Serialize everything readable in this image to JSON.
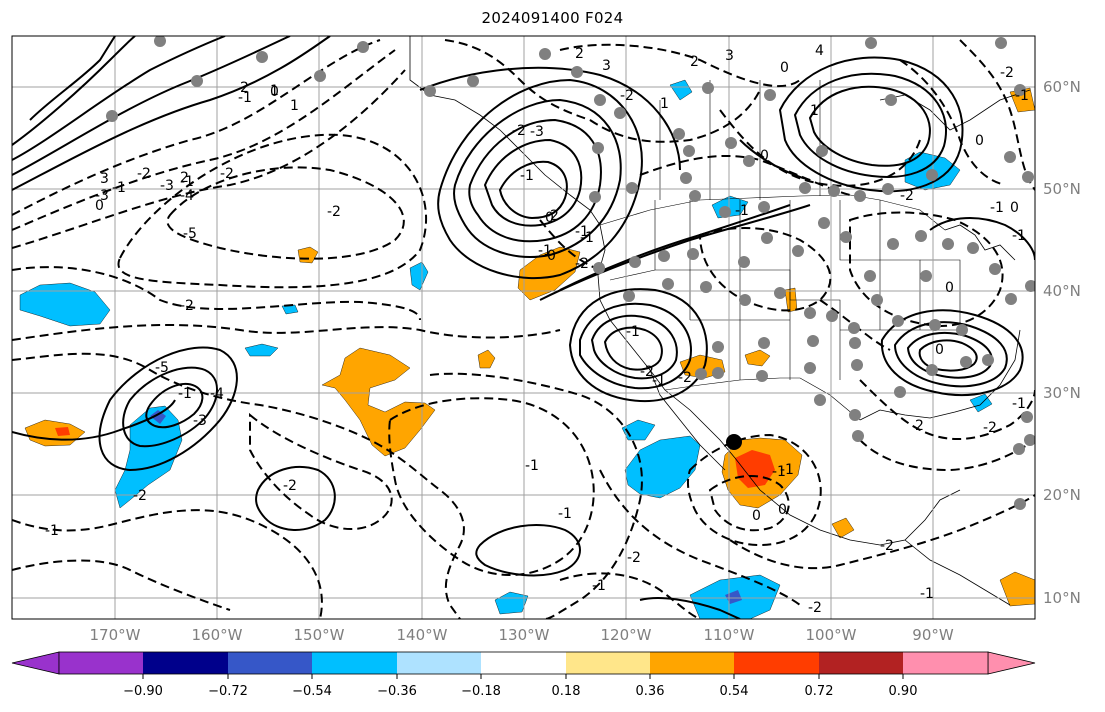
{
  "title": "2024091400 F024",
  "map": {
    "lon_labels": [
      "170°W",
      "160°W",
      "150°W",
      "140°W",
      "130°W",
      "120°W",
      "110°W",
      "100°W",
      "90°W"
    ],
    "lat_labels": [
      "60°N",
      "50°N",
      "40°N",
      "30°N",
      "20°N",
      "10°N"
    ],
    "contour_labels": [
      "-1",
      "-2",
      "-3",
      "-4",
      "-5",
      "-1",
      "0",
      "1",
      "2",
      "-2",
      "-1",
      "0",
      "-2",
      "-3",
      "-2",
      "-1",
      "-5",
      "-4",
      "-3",
      "-2",
      "-1",
      "-2",
      "-1",
      "-1",
      "-2",
      "-1",
      "-2",
      "-1",
      "-2",
      "0",
      "-1",
      "0",
      "-1",
      "-2",
      "-1",
      "-1",
      "-2",
      "-1",
      "0",
      "1",
      "2",
      "3",
      "4",
      "0",
      "1",
      "2",
      "3",
      "-2",
      "0",
      "-1",
      "-2",
      "2",
      "-2",
      "-1",
      "0",
      "-1",
      "0",
      "-1",
      "-2",
      "0",
      "1",
      "2",
      "3",
      "-1",
      "-2",
      "-3",
      "-2",
      "-1",
      "0",
      "-1",
      "0",
      "-1",
      "-2",
      "-1"
    ],
    "fill_colors": {
      "orange": "#ffa500",
      "red": "#ff3d00",
      "light_blue": "#00bfff",
      "purple": "#8a2be2",
      "gray_station": "#808080"
    }
  },
  "colorbar": {
    "colors": [
      "#9932cc",
      "#00008b",
      "#3657c8",
      "#00bfff",
      "#aee2ff",
      "#ffffff",
      "#ffe68a",
      "#ffa500",
      "#ff3d00",
      "#b22222",
      "#ff8fae"
    ],
    "ticks": [
      "−0.90",
      "−0.72",
      "−0.54",
      "−0.36",
      "−0.18",
      "0.18",
      "0.36",
      "0.54",
      "0.72",
      "0.90"
    ]
  }
}
